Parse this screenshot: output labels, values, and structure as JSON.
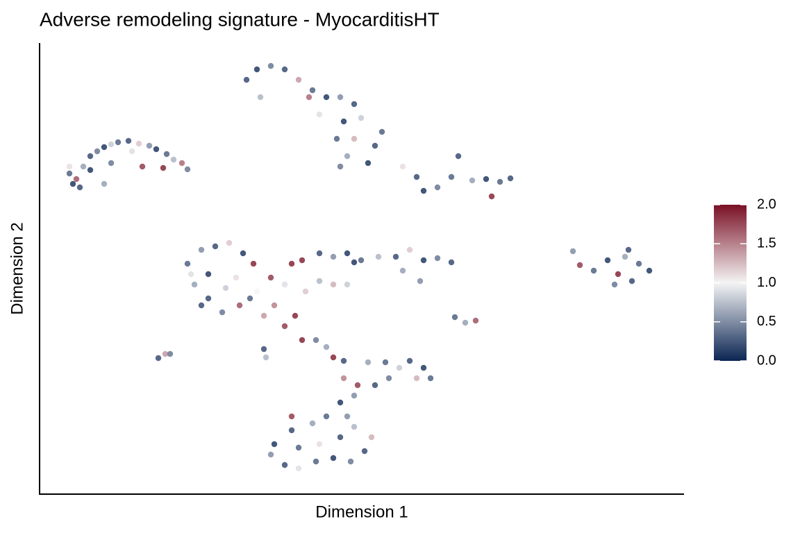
{
  "chart_data": {
    "type": "scatter",
    "title": "Adverse remodeling signature - MyocarditisHT",
    "xlabel": "Dimension 1",
    "ylabel": "Dimension 2",
    "xlim": [
      0,
      928
    ],
    "ylim": [
      0,
      650
    ],
    "x": [
      43,
      48,
      58,
      63,
      73,
      83,
      93,
      103,
      113,
      128,
      143,
      158,
      168,
      183,
      193,
      205,
      213,
      53,
      148,
      178,
      93,
      133,
      73,
      103,
      43,
      298,
      313,
      333,
      353,
      373,
      318,
      393,
      413,
      433,
      453,
      463,
      438,
      428,
      453,
      483,
      443,
      473,
      433,
      493,
      523,
      543,
      553,
      573,
      593,
      603,
      623,
      643,
      663,
      678,
      651,
      388,
      403,
      213,
      233,
      253,
      273,
      293,
      308,
      223,
      243,
      263,
      288,
      313,
      333,
      353,
      363,
      383,
      403,
      423,
      443,
      338,
      353,
      368,
      378,
      398,
      413,
      423,
      243,
      218,
      283,
      303,
      323,
      233,
      268,
      378,
      403,
      423,
      443,
      463,
      488,
      513,
      533,
      553,
      573,
      593,
      523,
      548,
      453,
      768,
      778,
      798,
      818,
      833,
      848,
      863,
      878,
      828,
      853,
      843,
      598,
      613,
      628,
      171,
      181,
      188,
      323,
      326,
      438,
      438,
      458,
      473,
      498,
      518,
      533,
      553,
      563,
      543,
      503,
      483,
      453,
      433,
      413,
      393,
      363,
      338,
      333,
      353,
      373,
      398,
      423,
      448,
      468,
      478,
      453,
      433,
      403,
      373,
      363,
      443
    ],
    "y": [
      462,
      447,
      442,
      472,
      487,
      494,
      500,
      504,
      507,
      509,
      505,
      502,
      497,
      490,
      482,
      477,
      468,
      454,
      472,
      470,
      447,
      494,
      467,
      477,
      472,
      597,
      612,
      617,
      612,
      597,
      572,
      582,
      572,
      572,
      562,
      542,
      537,
      512,
      512,
      502,
      487,
      477,
      472,
      522,
      472,
      457,
      437,
      442,
      457,
      487,
      452,
      454,
      450,
      455,
      429,
      572,
      547,
      332,
      352,
      357,
      362,
      347,
      332,
      302,
      282,
      262,
      272,
      292,
      312,
      302,
      332,
      292,
      307,
      302,
      302,
      272,
      242,
      257,
      222,
      222,
      212,
      197,
      317,
      317,
      312,
      282,
      257,
      272,
      297,
      337,
      347,
      342,
      347,
      337,
      342,
      342,
      352,
      337,
      340,
      334,
      322,
      307,
      334,
      350,
      330,
      322,
      337,
      317,
      352,
      332,
      322,
      302,
      307,
      342,
      255,
      247,
      250,
      196,
      202,
      202,
      209,
      197,
      192,
      167,
      157,
      190,
      190,
      182,
      192,
      182,
      167,
      167,
      167,
      157,
      142,
      132,
      112,
      102,
      92,
      72,
      57,
      42,
      37,
      47,
      52,
      47,
      62,
      82,
      97,
      82,
      72,
      67,
      112,
      112
    ],
    "values": [
      0.3,
      0.1,
      0.2,
      0.6,
      0.2,
      0.4,
      0.1,
      0.8,
      0.3,
      0.2,
      1.2,
      0.5,
      0.1,
      0.3,
      0.7,
      1.6,
      0.4,
      1.7,
      1.8,
      1.9,
      0.6,
      0.9,
      0.1,
      0.4,
      1.1,
      0.2,
      0.1,
      0.4,
      0.2,
      1.4,
      0.7,
      0.3,
      0.1,
      0.5,
      0.2,
      0.8,
      0.1,
      0.3,
      1.3,
      0.2,
      0.6,
      0.1,
      0.4,
      0.3,
      1.1,
      0.2,
      0.1,
      0.4,
      0.3,
      0.2,
      0.6,
      0.1,
      0.3,
      0.2,
      1.9,
      1.6,
      0.9,
      0.3,
      0.5,
      0.2,
      1.2,
      0.1,
      1.9,
      0.6,
      0.2,
      0.4,
      1.7,
      1.0,
      1.8,
      0.9,
      1.9,
      1.2,
      0.7,
      1.3,
      0.8,
      1.5,
      1.8,
      1.9,
      1.9,
      0.4,
      0.6,
      1.9,
      0.1,
      0.9,
      1.1,
      0.3,
      1.4,
      0.2,
      0.8,
      1.9,
      0.2,
      0.5,
      0.1,
      0.3,
      0.7,
      0.2,
      1.2,
      0.1,
      0.4,
      0.2,
      0.6,
      0.5,
      0.1,
      0.5,
      1.8,
      0.3,
      0.1,
      1.9,
      0.2,
      0.3,
      0.1,
      0.4,
      0.2,
      0.6,
      0.3,
      0.6,
      1.7,
      0.2,
      1.4,
      0.4,
      0.2,
      0.7,
      0.2,
      1.5,
      1.8,
      0.6,
      0.3,
      0.8,
      0.2,
      0.1,
      0.3,
      1.3,
      0.4,
      0.2,
      0.5,
      0.1,
      0.3,
      0.6,
      0.2,
      0.1,
      0.5,
      0.2,
      0.9,
      0.3,
      0.1,
      0.4,
      0.2,
      1.3,
      0.7,
      0.2,
      1.1,
      0.3,
      1.8,
      0.5
    ],
    "colorbar": {
      "lim": [
        0,
        2
      ],
      "ticks": [
        {
          "value": 0,
          "label": "0.0"
        },
        {
          "value": 0.5,
          "label": "0.5"
        },
        {
          "value": 1,
          "label": "1.0"
        },
        {
          "value": 1.5,
          "label": "1.5"
        },
        {
          "value": 2,
          "label": "2.0"
        }
      ],
      "colors": [
        "#0b2553",
        "#f4f4f4",
        "#7a1025"
      ]
    }
  }
}
